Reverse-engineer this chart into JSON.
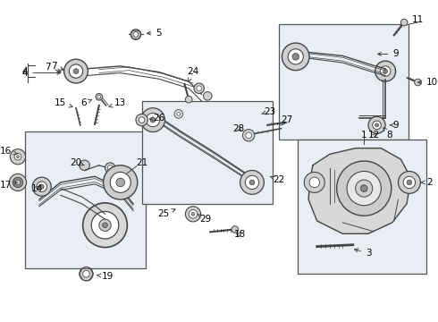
{
  "background_color": "#ffffff",
  "fig_width": 4.9,
  "fig_height": 3.6,
  "dpi": 100,
  "line_color": "#444444",
  "box_color": "#e8eef4",
  "box_edge": "#555555"
}
